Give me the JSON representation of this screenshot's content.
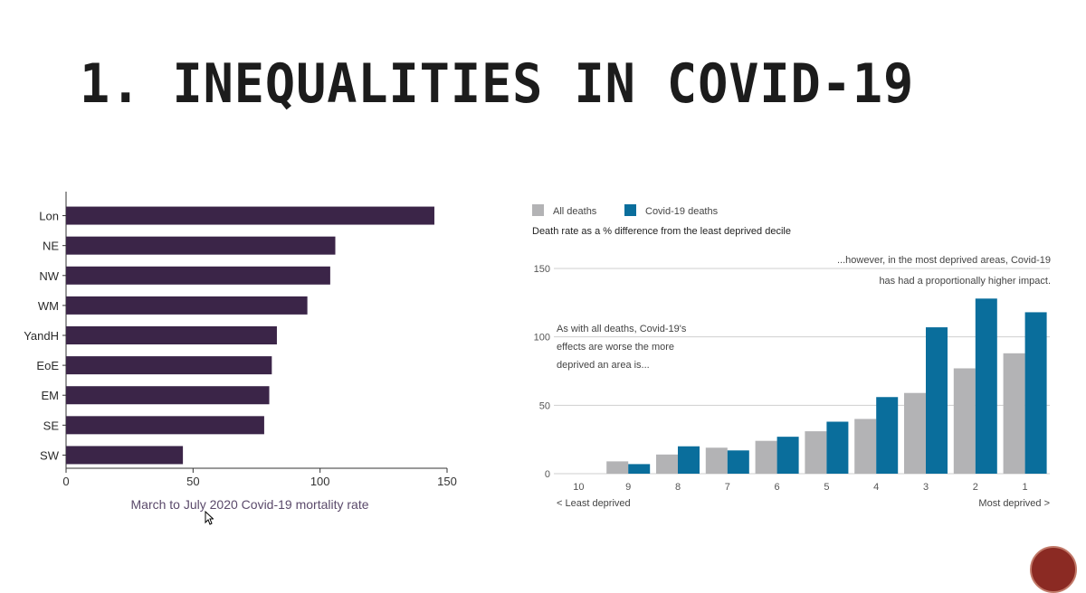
{
  "slide": {
    "title": "1. INEQUALITIES IN COVID-19"
  },
  "chart_data": [
    {
      "type": "bar",
      "orientation": "horizontal",
      "categories": [
        "Lon",
        "NE",
        "NW",
        "WM",
        "YandH",
        "EoE",
        "EM",
        "SE",
        "SW"
      ],
      "values": [
        145,
        106,
        104,
        95,
        83,
        81,
        80,
        78,
        46
      ],
      "xlabel": "March to July 2020 Covid-19 mortality rate",
      "xlim": [
        0,
        150
      ],
      "xticks": [
        "0",
        "50",
        "100",
        "150"
      ],
      "bar_color": "#3b2548",
      "grid": false
    },
    {
      "type": "bar",
      "categories": [
        "10",
        "9",
        "8",
        "7",
        "6",
        "5",
        "4",
        "3",
        "2",
        "1"
      ],
      "series": [
        {
          "name": "All deaths",
          "color": "#b3b3b5",
          "values": [
            0,
            9,
            14,
            19,
            24,
            31,
            40,
            59,
            77,
            88
          ]
        },
        {
          "name": "Covid-19 deaths",
          "color": "#0a6e9c",
          "values": [
            0,
            7,
            20,
            17,
            27,
            38,
            56,
            107,
            128,
            118
          ]
        }
      ],
      "subtitle": "Death rate as a % difference from the least deprived decile",
      "ylim": [
        0,
        150
      ],
      "yticks": [
        "0",
        "50",
        "100",
        "150"
      ],
      "legend_position": "top-left",
      "grid": true,
      "x_axis_left_note": "< Least deprived",
      "x_axis_right_note": "Most deprived >",
      "annotation_left": [
        "As with all deaths, Covid-19's",
        "effects are worse the more",
        "deprived an area is..."
      ],
      "annotation_right": [
        "...however, in the most deprived areas, Covid-19",
        "has had a proportionally higher impact."
      ]
    }
  ]
}
